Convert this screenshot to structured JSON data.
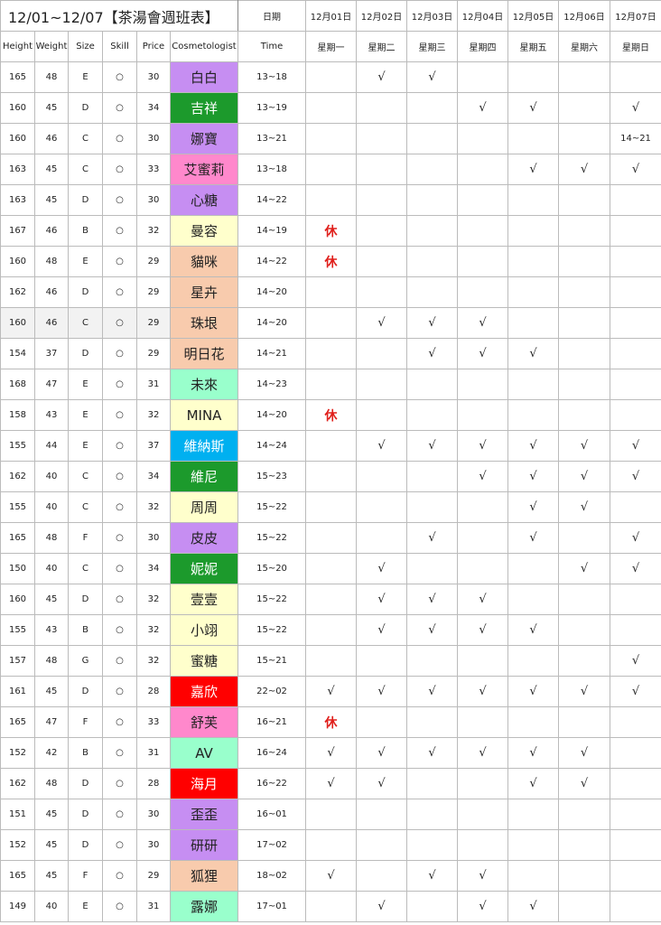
{
  "header": {
    "title": "12/01~12/07【茶湯會週班表】",
    "date_label": "日期",
    "dates": [
      "12月01日",
      "12月02日",
      "12月03日",
      "12月04日",
      "12月05日",
      "12月06日",
      "12月07日"
    ],
    "columns": [
      "Height",
      "Weight",
      "Size",
      "Skill",
      "Price",
      "Cosmetologist"
    ],
    "time_label": "Time",
    "weekdays": [
      "星期一",
      "星期二",
      "星期三",
      "星期四",
      "星期五",
      "星期六",
      "星期日"
    ]
  },
  "table": {
    "rows": [
      {
        "height": 165,
        "weight": 48,
        "size": "E",
        "skill": "○",
        "price": 30,
        "name": "白白",
        "color": "#c68ef2",
        "time": "13~18",
        "days": [
          null,
          "√",
          "√",
          null,
          null,
          null,
          null
        ]
      },
      {
        "height": 160,
        "weight": 45,
        "size": "D",
        "skill": "○",
        "price": 34,
        "name": "吉祥",
        "color": "#1c9a2c",
        "time": "13~19",
        "days": [
          null,
          null,
          null,
          "√",
          "√",
          null,
          "√"
        ]
      },
      {
        "height": 160,
        "weight": 46,
        "size": "C",
        "skill": "○",
        "price": 30,
        "name": "娜寶",
        "color": "#c68ef2",
        "time": "13~21",
        "days": [
          null,
          null,
          null,
          null,
          null,
          null,
          "14~21"
        ]
      },
      {
        "height": 163,
        "weight": 45,
        "size": "C",
        "skill": "○",
        "price": 33,
        "name": "艾蜜莉",
        "color": "#ff88cc",
        "time": "13~18",
        "days": [
          null,
          null,
          null,
          null,
          "√",
          "√",
          "√"
        ]
      },
      {
        "height": 163,
        "weight": 45,
        "size": "D",
        "skill": "○",
        "price": 30,
        "name": "心糖",
        "color": "#c68ef2",
        "time": "14~22",
        "days": [
          null,
          null,
          null,
          null,
          null,
          null,
          null
        ]
      },
      {
        "height": 167,
        "weight": 46,
        "size": "B",
        "skill": "○",
        "price": 32,
        "name": "曼容",
        "color": "#ffffcc",
        "time": "14~19",
        "days": [
          "休",
          null,
          null,
          null,
          null,
          null,
          null
        ]
      },
      {
        "height": 160,
        "weight": 48,
        "size": "E",
        "skill": "○",
        "price": 29,
        "name": "貓咪",
        "color": "#f8cbad",
        "time": "14~22",
        "days": [
          "休",
          null,
          null,
          null,
          null,
          null,
          null
        ]
      },
      {
        "height": 162,
        "weight": 46,
        "size": "D",
        "skill": "○",
        "price": 29,
        "name": "星卉",
        "color": "#f8cbad",
        "time": "14~20",
        "days": [
          null,
          null,
          null,
          null,
          null,
          null,
          null
        ]
      },
      {
        "height": 160,
        "weight": 46,
        "size": "C",
        "skill": "○",
        "price": 29,
        "name": "珠垠",
        "color": "#f8cbad",
        "time": "14~20",
        "days": [
          null,
          "√",
          "√",
          "√",
          null,
          null,
          null
        ]
      },
      {
        "height": 154,
        "weight": 37,
        "size": "D",
        "skill": "○",
        "price": 29,
        "name": "明日花",
        "color": "#f8cbad",
        "time": "14~21",
        "days": [
          null,
          null,
          "√",
          "√",
          "√",
          null,
          null
        ]
      },
      {
        "height": 168,
        "weight": 47,
        "size": "E",
        "skill": "○",
        "price": 31,
        "name": "未來",
        "color": "#99ffcc",
        "time": "14~23",
        "days": [
          null,
          null,
          null,
          null,
          null,
          null,
          null
        ]
      },
      {
        "height": 158,
        "weight": 43,
        "size": "E",
        "skill": "○",
        "price": 32,
        "name": "MINA",
        "color": "#ffffcc",
        "time": "14~20",
        "days": [
          "休",
          null,
          null,
          null,
          null,
          null,
          null
        ]
      },
      {
        "height": 155,
        "weight": 44,
        "size": "E",
        "skill": "○",
        "price": 37,
        "name": "維納斯",
        "color": "#00b0f0",
        "time": "14~24",
        "days": [
          null,
          "√",
          "√",
          "√",
          "√",
          "√",
          "√"
        ]
      },
      {
        "height": 162,
        "weight": 40,
        "size": "C",
        "skill": "○",
        "price": 34,
        "name": "維尼",
        "color": "#1c9a2c",
        "time": "15~23",
        "days": [
          null,
          null,
          null,
          "√",
          "√",
          "√",
          "√"
        ]
      },
      {
        "height": 155,
        "weight": 40,
        "size": "C",
        "skill": "○",
        "price": 32,
        "name": "周周",
        "color": "#ffffcc",
        "time": "15~22",
        "days": [
          null,
          null,
          null,
          null,
          "√",
          "√",
          null
        ]
      },
      {
        "height": 165,
        "weight": 48,
        "size": "F",
        "skill": "○",
        "price": 30,
        "name": "皮皮",
        "color": "#c68ef2",
        "time": "15~22",
        "days": [
          null,
          null,
          "√",
          null,
          "√",
          null,
          "√"
        ]
      },
      {
        "height": 150,
        "weight": 40,
        "size": "C",
        "skill": "○",
        "price": 34,
        "name": "妮妮",
        "color": "#1c9a2c",
        "time": "15~20",
        "days": [
          null,
          "√",
          null,
          null,
          null,
          "√",
          "√"
        ]
      },
      {
        "height": 160,
        "weight": 45,
        "size": "D",
        "skill": "○",
        "price": 32,
        "name": "壹壹",
        "color": "#ffffcc",
        "time": "15~22",
        "days": [
          null,
          "√",
          "√",
          "√",
          null,
          null,
          null
        ]
      },
      {
        "height": 155,
        "weight": 43,
        "size": "B",
        "skill": "○",
        "price": 32,
        "name": "小翊",
        "color": "#ffffcc",
        "time": "15~22",
        "days": [
          null,
          "√",
          "√",
          "√",
          "√",
          null,
          null
        ]
      },
      {
        "height": 157,
        "weight": 48,
        "size": "G",
        "skill": "○",
        "price": 32,
        "name": "蜜糖",
        "color": "#ffffcc",
        "time": "15~21",
        "days": [
          null,
          null,
          null,
          null,
          null,
          null,
          "√"
        ]
      },
      {
        "height": 161,
        "weight": 45,
        "size": "D",
        "skill": "○",
        "price": 28,
        "name": "嘉欣",
        "color": "#ff0000",
        "time": "22~02",
        "days": [
          "√",
          "√",
          "√",
          "√",
          "√",
          "√",
          "√"
        ]
      },
      {
        "height": 165,
        "weight": 47,
        "size": "F",
        "skill": "○",
        "price": 33,
        "name": "舒芙",
        "color": "#ff88cc",
        "time": "16~21",
        "days": [
          "休",
          null,
          null,
          null,
          null,
          null,
          null
        ]
      },
      {
        "height": 152,
        "weight": 42,
        "size": "B",
        "skill": "○",
        "price": 31,
        "name": "AV",
        "color": "#99ffcc",
        "time": "16~24",
        "days": [
          "√",
          "√",
          "√",
          "√",
          "√",
          "√",
          null
        ]
      },
      {
        "height": 162,
        "weight": 48,
        "size": "D",
        "skill": "○",
        "price": 28,
        "name": "海月",
        "color": "#ff0000",
        "time": "16~22",
        "days": [
          "√",
          "√",
          null,
          null,
          "√",
          "√",
          null
        ]
      },
      {
        "height": 151,
        "weight": 45,
        "size": "D",
        "skill": "○",
        "price": 30,
        "name": "歪歪",
        "color": "#c68ef2",
        "time": "16~01",
        "days": [
          null,
          null,
          null,
          null,
          null,
          null,
          null
        ]
      },
      {
        "height": 152,
        "weight": 45,
        "size": "D",
        "skill": "○",
        "price": 30,
        "name": "研研",
        "color": "#c68ef2",
        "time": "17~02",
        "days": [
          null,
          null,
          null,
          null,
          null,
          null,
          null
        ]
      },
      {
        "height": 165,
        "weight": 45,
        "size": "F",
        "skill": "○",
        "price": 29,
        "name": "狐狸",
        "color": "#f8cbad",
        "time": "18~02",
        "days": [
          "√",
          null,
          "√",
          "√",
          null,
          null,
          null
        ]
      },
      {
        "height": 149,
        "weight": 40,
        "size": "E",
        "skill": "○",
        "price": 31,
        "name": "露娜",
        "color": "#99ffcc",
        "time": "17~01",
        "days": [
          null,
          "√",
          null,
          "√",
          "√",
          null,
          null
        ]
      }
    ]
  }
}
